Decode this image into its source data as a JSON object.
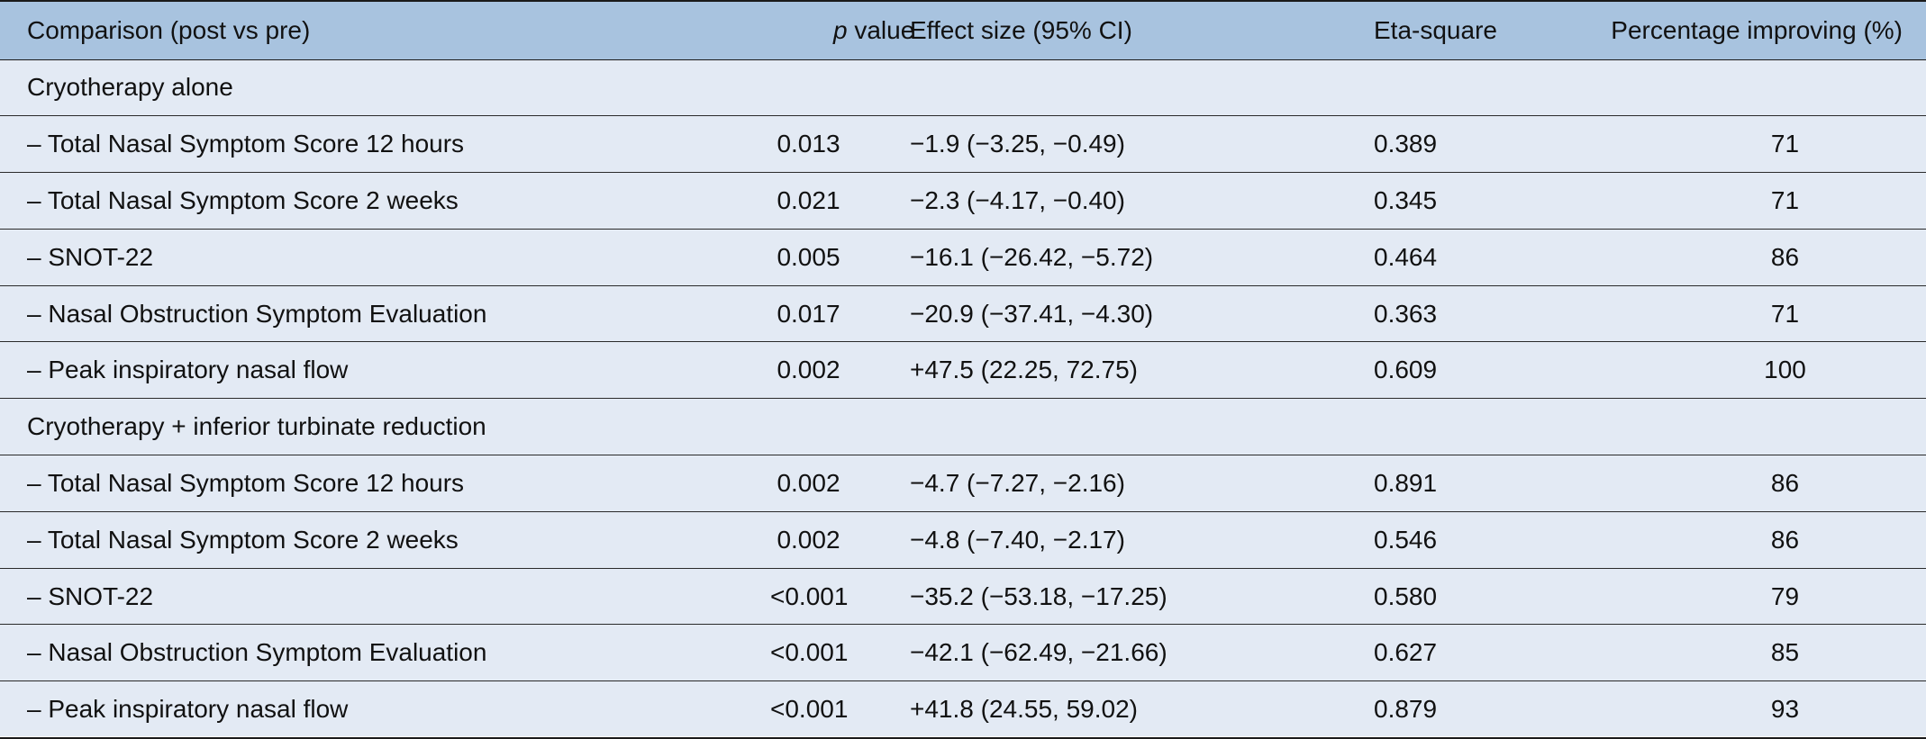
{
  "table": {
    "headers": {
      "comparison": "Comparison (post vs pre)",
      "p_value_italic": "p",
      "p_value_rest": " value",
      "effect_size": "Effect size (95% CI)",
      "eta_square": "Eta-square",
      "percentage": "Percentage improving (%)"
    },
    "sections": [
      {
        "title": "Cryotherapy alone",
        "rows": [
          {
            "label": "– Total Nasal Symptom Score 12 hours",
            "p": "0.013",
            "effect": "−1.9 (−3.25, −0.49)",
            "eta": "0.389",
            "pct": "71"
          },
          {
            "label": "– Total Nasal Symptom Score 2 weeks",
            "p": "0.021",
            "effect": "−2.3 (−4.17, −0.40)",
            "eta": "0.345",
            "pct": "71"
          },
          {
            "label": "– SNOT-22",
            "p": "0.005",
            "effect": "−16.1 (−26.42, −5.72)",
            "eta": "0.464",
            "pct": "86"
          },
          {
            "label": "– Nasal Obstruction Symptom Evaluation",
            "p": "0.017",
            "effect": "−20.9 (−37.41, −4.30)",
            "eta": "0.363",
            "pct": "71"
          },
          {
            "label": "– Peak inspiratory nasal flow",
            "p": "0.002",
            "effect": "+47.5 (22.25, 72.75)",
            "eta": "0.609",
            "pct": "100"
          }
        ]
      },
      {
        "title": "Cryotherapy + inferior turbinate reduction",
        "rows": [
          {
            "label": "– Total Nasal Symptom Score 12 hours",
            "p": "0.002",
            "effect": "−4.7 (−7.27, −2.16)",
            "eta": "0.891",
            "pct": "86"
          },
          {
            "label": "– Total Nasal Symptom Score 2 weeks",
            "p": "0.002",
            "effect": "−4.8 (−7.40, −2.17)",
            "eta": "0.546",
            "pct": "86"
          },
          {
            "label": "– SNOT-22",
            "p": "<0.001",
            "effect": "−35.2 (−53.18, −17.25)",
            "eta": "0.580",
            "pct": "79"
          },
          {
            "label": "– Nasal Obstruction Symptom Evaluation",
            "p": "<0.001",
            "effect": "−42.1 (−62.49, −21.66)",
            "eta": "0.627",
            "pct": "85"
          },
          {
            "label": "– Peak inspiratory nasal flow",
            "p": "<0.001",
            "effect": "+41.8 (24.55, 59.02)",
            "eta": "0.879",
            "pct": "93"
          }
        ]
      }
    ]
  },
  "colors": {
    "header_bg": "#a8c3df",
    "body_bg": "#e3eaf4",
    "rule": "#1a1a1a"
  }
}
